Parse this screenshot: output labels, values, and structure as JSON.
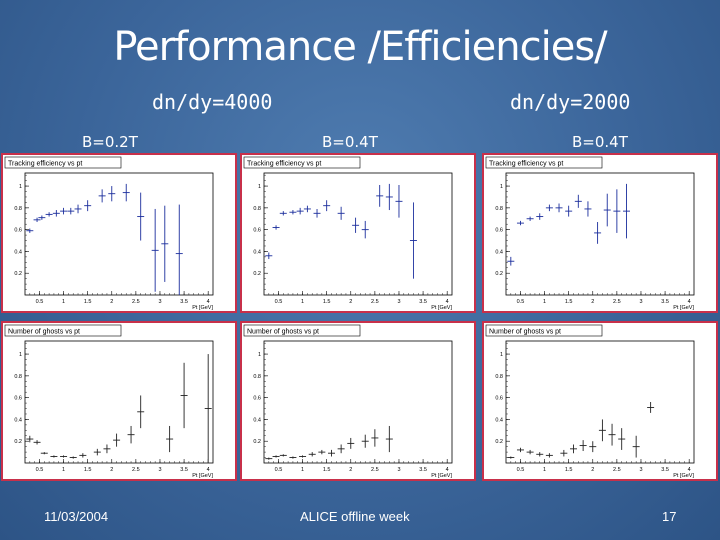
{
  "slide": {
    "title": "Performance /Efficiencies/",
    "subheads": [
      "dn/dy=4000",
      "dn/dy=2000"
    ],
    "bfields": [
      "B=0.2T",
      "B=0.4T",
      "B=0.4T"
    ],
    "footer_date": "11/03/2004",
    "footer_center": "ALICE offline week",
    "page_number": "17"
  },
  "chart_data": [
    {
      "type": "scatter",
      "title": "Tracking efficiency vs pt",
      "xlabel": "Pt [GeV]",
      "ylabel": "",
      "xlim": [
        0.2,
        4.1
      ],
      "ylim": [
        0,
        1.12
      ],
      "xticks": [
        "0.5",
        "1",
        "1.5",
        "2",
        "2.5",
        "3",
        "3.5",
        "4"
      ],
      "yticks": [
        "0.2",
        "0.4",
        "0.6",
        "0.8",
        "1"
      ],
      "points": [
        [
          0.3,
          0.59
        ],
        [
          0.45,
          0.69
        ],
        [
          0.55,
          0.71
        ],
        [
          0.7,
          0.74
        ],
        [
          0.85,
          0.75
        ],
        [
          1.0,
          0.77
        ],
        [
          1.15,
          0.77
        ],
        [
          1.3,
          0.79
        ],
        [
          1.5,
          0.82
        ],
        [
          1.8,
          0.91
        ],
        [
          2.0,
          0.93
        ],
        [
          2.3,
          0.94
        ],
        [
          2.6,
          0.72
        ],
        [
          2.9,
          0.41
        ],
        [
          3.1,
          0.47
        ],
        [
          3.4,
          0.38
        ]
      ],
      "errors": [
        0.02,
        0.02,
        0.02,
        0.02,
        0.03,
        0.03,
        0.03,
        0.04,
        0.05,
        0.06,
        0.07,
        0.08,
        0.22,
        0.38,
        0.35,
        0.45
      ]
    },
    {
      "type": "scatter",
      "title": "Tracking efficiency vs pt",
      "xlabel": "Pt [GeV]",
      "ylabel": "",
      "xlim": [
        0.2,
        4.1
      ],
      "ylim": [
        0,
        1.12
      ],
      "xticks": [
        "0.5",
        "1",
        "1.5",
        "2",
        "2.5",
        "3",
        "3.5",
        "4"
      ],
      "yticks": [
        "0.2",
        "0.4",
        "0.6",
        "0.8",
        "1"
      ],
      "points": [
        [
          0.3,
          0.36
        ],
        [
          0.45,
          0.62
        ],
        [
          0.6,
          0.75
        ],
        [
          0.8,
          0.76
        ],
        [
          0.95,
          0.77
        ],
        [
          1.1,
          0.79
        ],
        [
          1.3,
          0.75
        ],
        [
          1.5,
          0.82
        ],
        [
          1.8,
          0.75
        ],
        [
          2.1,
          0.64
        ],
        [
          2.3,
          0.6
        ],
        [
          2.6,
          0.91
        ],
        [
          2.8,
          0.9
        ],
        [
          3.0,
          0.86
        ],
        [
          3.3,
          0.5
        ]
      ],
      "errors": [
        0.03,
        0.02,
        0.02,
        0.02,
        0.03,
        0.03,
        0.04,
        0.05,
        0.06,
        0.07,
        0.08,
        0.1,
        0.12,
        0.15,
        0.35
      ]
    },
    {
      "type": "scatter",
      "title": "Tracking efficiency vs pt",
      "xlabel": "Pt [GeV]",
      "ylabel": "",
      "xlim": [
        0.2,
        4.1
      ],
      "ylim": [
        0,
        1.12
      ],
      "xticks": [
        "0.5",
        "1",
        "1.5",
        "2",
        "2.5",
        "3",
        "3.5",
        "4"
      ],
      "yticks": [
        "0.2",
        "0.4",
        "0.6",
        "0.8",
        "1"
      ],
      "points": [
        [
          0.3,
          0.31
        ],
        [
          0.5,
          0.66
        ],
        [
          0.7,
          0.7
        ],
        [
          0.9,
          0.72
        ],
        [
          1.1,
          0.8
        ],
        [
          1.3,
          0.8
        ],
        [
          1.5,
          0.77
        ],
        [
          1.7,
          0.86
        ],
        [
          1.9,
          0.79
        ],
        [
          2.1,
          0.57
        ],
        [
          2.3,
          0.78
        ],
        [
          2.5,
          0.77
        ],
        [
          2.7,
          0.77
        ]
      ],
      "errors": [
        0.04,
        0.02,
        0.02,
        0.03,
        0.03,
        0.04,
        0.05,
        0.06,
        0.07,
        0.1,
        0.15,
        0.2,
        0.25
      ]
    },
    {
      "type": "scatter",
      "title": "Number of ghosts vs pt",
      "xlabel": "Pt [GeV]",
      "ylabel": "",
      "xlim": [
        0.2,
        4.1
      ],
      "ylim": [
        0,
        1.12
      ],
      "xticks": [
        "0.5",
        "1",
        "1.5",
        "2",
        "2.5",
        "3",
        "3.5",
        "4"
      ],
      "yticks": [
        "0.2",
        "0.4",
        "0.6",
        "0.8",
        "1"
      ],
      "points": [
        [
          0.3,
          0.22
        ],
        [
          0.45,
          0.19
        ],
        [
          0.6,
          0.09
        ],
        [
          0.8,
          0.06
        ],
        [
          1.0,
          0.06
        ],
        [
          1.2,
          0.05
        ],
        [
          1.4,
          0.07
        ],
        [
          1.7,
          0.1
        ],
        [
          1.9,
          0.13
        ],
        [
          2.1,
          0.21
        ],
        [
          2.4,
          0.26
        ],
        [
          2.6,
          0.47
        ],
        [
          3.2,
          0.22
        ],
        [
          3.5,
          0.62
        ],
        [
          4.0,
          0.5
        ]
      ],
      "errors": [
        0.03,
        0.02,
        0.01,
        0.01,
        0.01,
        0.01,
        0.02,
        0.03,
        0.04,
        0.06,
        0.08,
        0.15,
        0.12,
        0.3,
        0.5
      ]
    },
    {
      "type": "scatter",
      "title": "Number of ghosts vs pt",
      "xlabel": "Pt [GeV]",
      "ylabel": "",
      "xlim": [
        0.2,
        4.1
      ],
      "ylim": [
        0,
        1.12
      ],
      "xticks": [
        "0.5",
        "1",
        "1.5",
        "2",
        "2.5",
        "3",
        "3.5",
        "4"
      ],
      "yticks": [
        "0.2",
        "0.4",
        "0.6",
        "0.8",
        "1"
      ],
      "points": [
        [
          0.3,
          0.04
        ],
        [
          0.45,
          0.06
        ],
        [
          0.6,
          0.07
        ],
        [
          0.8,
          0.05
        ],
        [
          1.0,
          0.06
        ],
        [
          1.2,
          0.08
        ],
        [
          1.4,
          0.1
        ],
        [
          1.6,
          0.09
        ],
        [
          1.8,
          0.13
        ],
        [
          2.0,
          0.18
        ],
        [
          2.3,
          0.2
        ],
        [
          2.5,
          0.23
        ],
        [
          2.8,
          0.22
        ]
      ],
      "errors": [
        0.01,
        0.01,
        0.01,
        0.01,
        0.01,
        0.02,
        0.02,
        0.03,
        0.04,
        0.05,
        0.06,
        0.08,
        0.12
      ]
    },
    {
      "type": "scatter",
      "title": "Number of ghosts vs pt",
      "xlabel": "Pt [GeV]",
      "ylabel": "",
      "xlim": [
        0.2,
        4.1
      ],
      "ylim": [
        0,
        1.12
      ],
      "xticks": [
        "0.5",
        "1",
        "1.5",
        "2",
        "2.5",
        "3",
        "3.5",
        "4"
      ],
      "yticks": [
        "0.2",
        "0.4",
        "0.6",
        "0.8",
        "1"
      ],
      "points": [
        [
          0.3,
          0.05
        ],
        [
          0.5,
          0.12
        ],
        [
          0.7,
          0.1
        ],
        [
          0.9,
          0.08
        ],
        [
          1.1,
          0.07
        ],
        [
          1.4,
          0.09
        ],
        [
          1.6,
          0.13
        ],
        [
          1.8,
          0.16
        ],
        [
          2.0,
          0.15
        ],
        [
          2.2,
          0.3
        ],
        [
          2.4,
          0.26
        ],
        [
          2.6,
          0.22
        ],
        [
          2.9,
          0.15
        ],
        [
          3.2,
          0.51
        ]
      ],
      "errors": [
        0.01,
        0.02,
        0.02,
        0.02,
        0.02,
        0.03,
        0.04,
        0.05,
        0.05,
        0.1,
        0.1,
        0.1,
        0.1,
        0.05
      ]
    }
  ]
}
